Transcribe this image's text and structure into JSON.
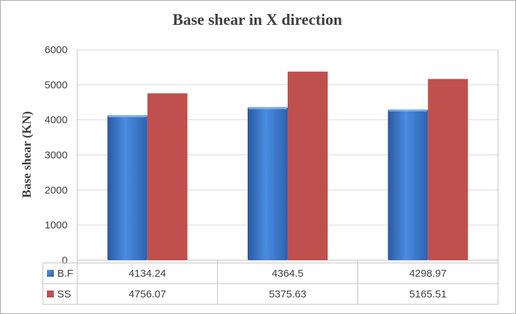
{
  "chart_data": {
    "type": "bar",
    "title": "Base shear in X direction",
    "ylabel": "Base shear (KN)",
    "xlabel": "",
    "ylim": [
      0,
      6000
    ],
    "yticks": [
      0,
      1000,
      2000,
      3000,
      4000,
      5000,
      6000
    ],
    "grid": true,
    "legend": "data-table-left",
    "categories": [
      "",
      "",
      ""
    ],
    "series": [
      {
        "name": "B.F",
        "color": "#3e7ccd",
        "values": [
          4134.24,
          4364.5,
          4298.97
        ],
        "labels": [
          "4134.24",
          "4364.5",
          "4298.97"
        ]
      },
      {
        "name": "SS",
        "color": "#c0504d",
        "values": [
          4756.07,
          5375.63,
          5165.51
        ],
        "labels": [
          "4756.07",
          "5375.63",
          "5165.51"
        ]
      }
    ]
  }
}
